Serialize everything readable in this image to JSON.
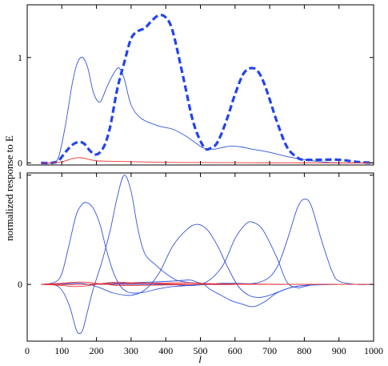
{
  "chart_data": [
    {
      "type": "line",
      "panel": "top",
      "ylabel": "normalized response to E",
      "xlim": [
        0,
        1000
      ],
      "ylim": [
        -0.02,
        1.5
      ],
      "yticks": [
        {
          "value": 0,
          "label": "0"
        },
        {
          "value": 1,
          "label": "1"
        }
      ],
      "grid": false,
      "series": [
        {
          "color": "#3355dd",
          "style": "thin",
          "x": [
            40,
            70,
            90,
            110,
            130,
            145,
            160,
            175,
            190,
            205,
            215,
            230,
            250,
            265,
            280,
            300,
            330,
            380,
            420,
            460,
            490,
            510,
            540,
            570,
            590,
            620,
            650,
            700,
            750,
            800,
            850,
            900,
            950,
            1000
          ],
          "y": [
            0,
            0,
            0.05,
            0.35,
            0.75,
            0.95,
            1.0,
            0.9,
            0.68,
            0.58,
            0.6,
            0.72,
            0.85,
            0.9,
            0.8,
            0.55,
            0.42,
            0.35,
            0.32,
            0.25,
            0.18,
            0.14,
            0.13,
            0.15,
            0.16,
            0.15,
            0.13,
            0.1,
            0.06,
            0.03,
            0.01,
            0,
            0,
            0
          ]
        },
        {
          "color": "#2244ee",
          "style": "thick-dashed",
          "x": [
            40,
            70,
            90,
            110,
            130,
            150,
            165,
            180,
            195,
            210,
            225,
            240,
            260,
            280,
            300,
            320,
            340,
            360,
            380,
            400,
            420,
            450,
            480,
            510,
            530,
            550,
            575,
            600,
            625,
            650,
            670,
            690,
            720,
            750,
            780,
            800,
            850,
            900,
            950,
            1000
          ],
          "y": [
            0,
            0,
            0.02,
            0.1,
            0.17,
            0.2,
            0.18,
            0.12,
            0.08,
            0.1,
            0.18,
            0.35,
            0.7,
            0.95,
            1.18,
            1.25,
            1.28,
            1.35,
            1.4,
            1.38,
            1.25,
            0.82,
            0.38,
            0.15,
            0.14,
            0.2,
            0.4,
            0.65,
            0.85,
            0.9,
            0.85,
            0.7,
            0.4,
            0.15,
            0.05,
            0.03,
            0.03,
            0.03,
            0.01,
            0
          ]
        },
        {
          "color": "#ee3333",
          "style": "thin",
          "x": [
            40,
            70,
            100,
            130,
            150,
            170,
            200,
            250,
            300,
            400,
            500,
            600,
            700,
            800,
            900,
            1000
          ],
          "y": [
            0,
            0,
            0.01,
            0.04,
            0.05,
            0.04,
            0.02,
            0.015,
            0.012,
            0.005,
            0.003,
            0.002,
            0.001,
            0.001,
            0,
            0
          ]
        }
      ]
    },
    {
      "type": "line",
      "panel": "bottom",
      "xlabel": "l",
      "xlim": [
        0,
        1000
      ],
      "ylim": [
        -0.52,
        1.02
      ],
      "yticks": [
        {
          "value": 0,
          "label": "0"
        },
        {
          "value": 1,
          "label": "1"
        }
      ],
      "xticks": [
        {
          "value": 0,
          "label": "0"
        },
        {
          "value": 100,
          "label": "100"
        },
        {
          "value": 200,
          "label": "200"
        },
        {
          "value": 300,
          "label": "300"
        },
        {
          "value": 400,
          "label": "400"
        },
        {
          "value": 500,
          "label": "500"
        },
        {
          "value": 600,
          "label": "600"
        },
        {
          "value": 700,
          "label": "700"
        },
        {
          "value": 800,
          "label": "800"
        },
        {
          "value": 900,
          "label": "900"
        },
        {
          "value": 1000,
          "label": "1000"
        }
      ],
      "grid": false,
      "series": [
        {
          "color": "#3355dd",
          "x": [
            40,
            80,
            100,
            120,
            140,
            155,
            170,
            190,
            210,
            230,
            250,
            270,
            290,
            310,
            340,
            380,
            420,
            470,
            520,
            560,
            580,
            600,
            650,
            700,
            750,
            800,
            900,
            1000
          ],
          "y": [
            0,
            0.02,
            0.1,
            0.35,
            0.62,
            0.72,
            0.75,
            0.7,
            0.55,
            0.3,
            0.1,
            -0.02,
            -0.07,
            -0.08,
            -0.07,
            -0.04,
            -0.02,
            -0.01,
            0,
            0.01,
            0.01,
            0.01,
            0.005,
            0,
            0,
            0,
            0,
            0
          ]
        },
        {
          "color": "#3355dd",
          "x": [
            40,
            90,
            120,
            140,
            150,
            160,
            170,
            190,
            215,
            240,
            260,
            280,
            300,
            320,
            340,
            370,
            400,
            430,
            460,
            490,
            520,
            560,
            600,
            640,
            700,
            800,
            1000
          ],
          "y": [
            0,
            -0.02,
            -0.18,
            -0.4,
            -0.45,
            -0.42,
            -0.3,
            -0.05,
            0.2,
            0.5,
            0.8,
            1.0,
            0.85,
            0.5,
            0.28,
            0.18,
            0.1,
            0.04,
            0.02,
            0.01,
            0.005,
            0,
            0,
            0,
            0,
            0,
            0
          ]
        },
        {
          "color": "#3355dd",
          "x": [
            40,
            150,
            200,
            250,
            300,
            340,
            380,
            420,
            460,
            490,
            520,
            550,
            580,
            610,
            640,
            670,
            700,
            750,
            800,
            900,
            1000
          ],
          "y": [
            0,
            0.01,
            -0.02,
            -0.08,
            -0.1,
            -0.05,
            0.1,
            0.35,
            0.5,
            0.55,
            0.5,
            0.35,
            0.15,
            -0.02,
            -0.1,
            -0.12,
            -0.1,
            -0.04,
            -0.01,
            0,
            0
          ]
        },
        {
          "color": "#3355dd",
          "x": [
            40,
            150,
            250,
            350,
            420,
            470,
            490,
            510,
            530,
            560,
            590,
            620,
            640,
            660,
            690,
            720,
            760,
            800,
            850,
            900,
            1000
          ],
          "y": [
            0,
            0,
            0.01,
            0.02,
            0.03,
            0.04,
            0.02,
            0,
            -0.05,
            -0.1,
            -0.15,
            -0.18,
            -0.2,
            -0.2,
            -0.15,
            -0.08,
            -0.03,
            -0.01,
            0,
            0,
            0
          ]
        },
        {
          "color": "#3355dd",
          "x": [
            40,
            250,
            400,
            500,
            560,
            600,
            630,
            650,
            680,
            720,
            750,
            780,
            800,
            830,
            860,
            900,
            950,
            1000
          ],
          "y": [
            0,
            0,
            0,
            0,
            0.15,
            0.42,
            0.55,
            0.57,
            0.5,
            0.25,
            0.02,
            -0.03,
            -0.02,
            0,
            0,
            0,
            0,
            0
          ]
        },
        {
          "color": "#3355dd",
          "x": [
            40,
            400,
            600,
            680,
            720,
            750,
            780,
            800,
            820,
            850,
            880,
            900,
            950,
            1000
          ],
          "y": [
            0,
            0,
            0,
            0.03,
            0.15,
            0.4,
            0.7,
            0.78,
            0.72,
            0.4,
            0.12,
            0.03,
            0,
            0
          ]
        },
        {
          "color": "#ee3333",
          "x": [
            40,
            100,
            140,
            170,
            200,
            230,
            260,
            300,
            400,
            500,
            600,
            700,
            800,
            900,
            1000
          ],
          "y": [
            0,
            0.01,
            0.02,
            0.02,
            0.01,
            0,
            -0.01,
            -0.01,
            -0.005,
            0,
            0,
            0,
            0,
            0,
            0
          ]
        },
        {
          "color": "#ee3333",
          "x": [
            40,
            100,
            140,
            180,
            220,
            260,
            300,
            350,
            400,
            500,
            600,
            700,
            800,
            900,
            1000
          ],
          "y": [
            0,
            -0.01,
            -0.02,
            -0.01,
            0.01,
            0.02,
            0.015,
            0.01,
            0.005,
            0,
            0,
            0,
            0,
            0,
            0
          ]
        },
        {
          "color": "#ee3333",
          "x": [
            40,
            150,
            250,
            350,
            450,
            500,
            550,
            600,
            700,
            800,
            900,
            1000
          ],
          "y": [
            0,
            0,
            0.005,
            0.01,
            0.015,
            0.01,
            0.005,
            0.005,
            0.002,
            0,
            0,
            0
          ]
        }
      ]
    }
  ]
}
